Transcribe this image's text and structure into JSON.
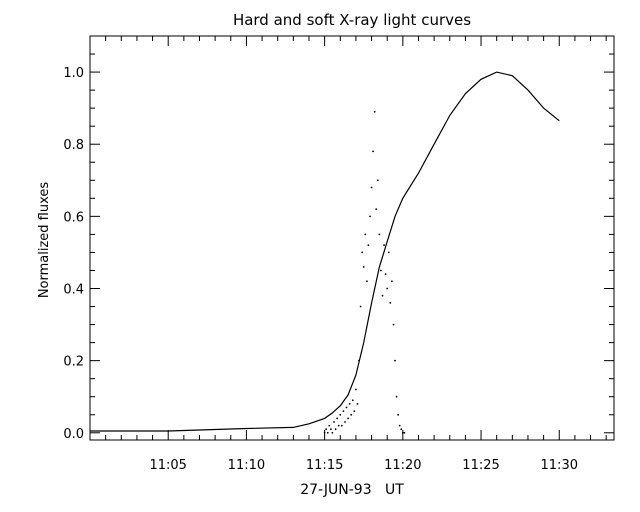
{
  "chart_data": {
    "type": "line",
    "title": "Hard and soft X-ray light curves",
    "xlabel": "27-JUN-93   UT",
    "ylabel": "Normalized fluxes",
    "x_unit": "minutes after 11:00 UT",
    "xlim": [
      0,
      33.5
    ],
    "ylim": [
      -0.02,
      1.1
    ],
    "x_ticks": [
      {
        "value": 5,
        "label": "11:05"
      },
      {
        "value": 10,
        "label": "11:10"
      },
      {
        "value": 15,
        "label": "11:15"
      },
      {
        "value": 20,
        "label": "11:20"
      },
      {
        "value": 25,
        "label": "11:25"
      },
      {
        "value": 30,
        "label": "11:30"
      }
    ],
    "y_ticks": [
      {
        "value": 0.0,
        "label": "0.0"
      },
      {
        "value": 0.2,
        "label": "0.2"
      },
      {
        "value": 0.4,
        "label": "0.4"
      },
      {
        "value": 0.6,
        "label": "0.6"
      },
      {
        "value": 0.8,
        "label": "0.8"
      },
      {
        "value": 1.0,
        "label": "1.0"
      }
    ],
    "grid": false,
    "series": [
      {
        "style": "line",
        "x": [
          0,
          5,
          10,
          13,
          14,
          15,
          15.5,
          16,
          16.5,
          17,
          17.5,
          18,
          18.5,
          19,
          19.5,
          20,
          21,
          22,
          23,
          24,
          25,
          26,
          27,
          28,
          29,
          30
        ],
        "y": [
          0.005,
          0.005,
          0.012,
          0.015,
          0.025,
          0.04,
          0.055,
          0.075,
          0.105,
          0.16,
          0.25,
          0.36,
          0.46,
          0.53,
          0.6,
          0.65,
          0.72,
          0.8,
          0.88,
          0.94,
          0.98,
          1.0,
          0.99,
          0.95,
          0.9,
          0.865
        ]
      },
      {
        "style": "dots",
        "x": [
          15.0,
          15.1,
          15.2,
          15.3,
          15.4,
          15.5,
          15.6,
          15.7,
          15.8,
          15.9,
          16.0,
          16.1,
          16.2,
          16.3,
          16.4,
          16.5,
          16.6,
          16.7,
          16.8,
          16.9,
          17.0,
          17.1,
          17.2,
          17.3,
          17.4,
          17.5,
          17.6,
          17.7,
          17.8,
          17.9,
          18.0,
          18.1,
          18.2,
          18.3,
          18.4,
          18.5,
          18.6,
          18.7,
          18.8,
          18.9,
          19.0,
          19.1,
          19.2,
          19.3,
          19.4,
          19.5,
          19.6,
          19.7,
          19.8,
          19.9,
          20.0,
          20.1
        ],
        "y": [
          0.0,
          0.01,
          0.0,
          0.02,
          0.01,
          0.0,
          0.03,
          0.01,
          0.04,
          0.02,
          0.05,
          0.02,
          0.06,
          0.03,
          0.07,
          0.04,
          0.08,
          0.05,
          0.09,
          0.06,
          0.12,
          0.08,
          0.2,
          0.35,
          0.5,
          0.46,
          0.55,
          0.42,
          0.52,
          0.6,
          0.68,
          0.78,
          0.89,
          0.62,
          0.7,
          0.55,
          0.45,
          0.38,
          0.52,
          0.44,
          0.4,
          0.5,
          0.36,
          0.42,
          0.3,
          0.2,
          0.1,
          0.05,
          0.02,
          0.01,
          0.0,
          0.0
        ]
      }
    ]
  }
}
